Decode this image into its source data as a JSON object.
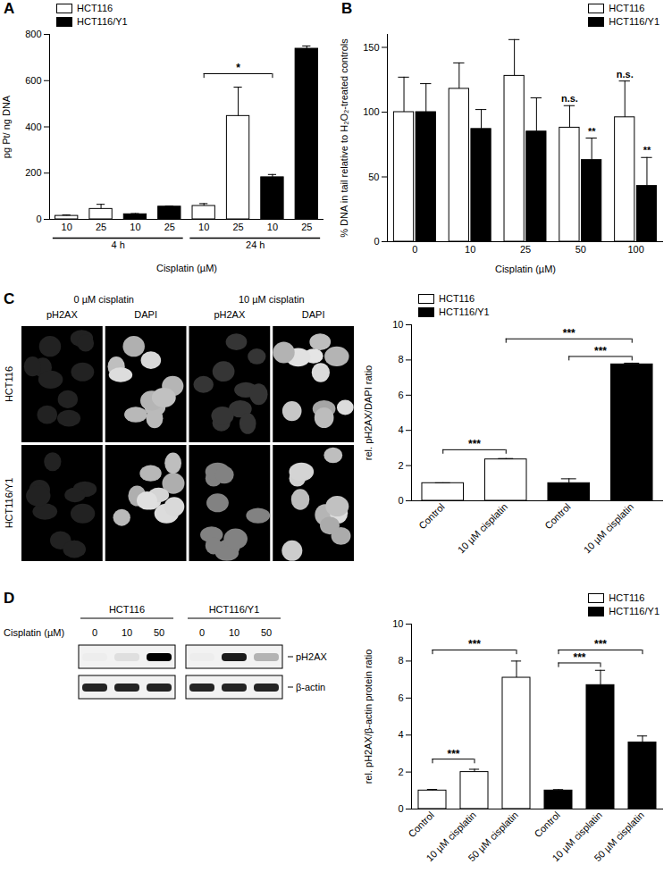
{
  "chart_data": [
    {
      "type": "bar",
      "title": "A",
      "xlabel": "Cisplatin (µM)",
      "ylabel": "pg Pt/ ng DNA",
      "categories": [
        "10",
        "25",
        "10",
        "25",
        "10",
        "25",
        "10",
        "25"
      ],
      "groups": [
        "4 h",
        "4 h",
        "4 h",
        "4 h",
        "24 h",
        "24 h",
        "24 h",
        "24 h"
      ],
      "bar_series": [
        "HCT116",
        "HCT116",
        "HCT116/Y1",
        "HCT116/Y1",
        "HCT116",
        "HCT116",
        "HCT116/Y1",
        "HCT116/Y1"
      ],
      "values": [
        15,
        45,
        22,
        55,
        58,
        447,
        182,
        738
      ],
      "errors": [
        4,
        20,
        3,
        3,
        10,
        125,
        12,
        12
      ],
      "series": [
        {
          "name": "HCT116",
          "color": "#ffffff"
        },
        {
          "name": "HCT116/Y1",
          "color": "#000000"
        }
      ],
      "ylim": [
        0,
        800
      ],
      "yticks": [
        0,
        200,
        400,
        600,
        800
      ],
      "legend": "top-left",
      "brackets": [
        {
          "text": "*",
          "from": 4,
          "to": 6,
          "y": 630
        }
      ]
    },
    {
      "type": "bar",
      "title": "B",
      "xlabel": "Cisplatin (µM)",
      "ylabel": "% DNA in tail relative to H₂O₂-treated controls",
      "categories": [
        "0",
        "10",
        "25",
        "50",
        "100"
      ],
      "series": [
        {
          "name": "HCT116",
          "color": "#ffffff",
          "values": [
            100,
            118,
            128,
            88,
            96
          ],
          "errors": [
            27,
            20,
            28,
            17,
            28
          ]
        },
        {
          "name": "HCT116/Y1",
          "color": "#000000",
          "values": [
            100,
            87,
            85,
            63,
            43
          ],
          "errors": [
            22,
            15,
            26,
            17,
            22
          ]
        }
      ],
      "ylim": [
        0,
        160
      ],
      "yticks": [
        0,
        50,
        100,
        150
      ],
      "legend": "top-right",
      "annotations": [
        {
          "text": "n.s.",
          "category": "50",
          "series": "HCT116"
        },
        {
          "text": "n.s.",
          "category": "100",
          "series": "HCT116"
        },
        {
          "text": "**",
          "category": "50",
          "series": "HCT116/Y1"
        },
        {
          "text": "**",
          "category": "100",
          "series": "HCT116/Y1"
        }
      ]
    },
    {
      "type": "bar",
      "title": "C",
      "ylabel": "rel. pH2AX/DAPI ratio",
      "categories": [
        "Control",
        "10 µM cisplatin",
        "Control",
        "10 µM cisplatin"
      ],
      "bar_series": [
        "HCT116",
        "HCT116",
        "HCT116/Y1",
        "HCT116/Y1"
      ],
      "values": [
        1,
        2.35,
        1,
        7.75
      ],
      "errors": [
        0.02,
        0.05,
        0.25,
        0.07
      ],
      "series": [
        {
          "name": "HCT116",
          "color": "#ffffff"
        },
        {
          "name": "HCT116/Y1",
          "color": "#000000"
        }
      ],
      "ylim": [
        0,
        10
      ],
      "yticks": [
        0,
        2,
        4,
        6,
        8,
        10
      ],
      "legend": "top-left",
      "brackets": [
        {
          "text": "***",
          "from": 0,
          "to": 1,
          "y": 2.9
        },
        {
          "text": "***",
          "from": 2,
          "to": 3,
          "y": 8.2
        },
        {
          "text": "***",
          "from": 1,
          "to": 3,
          "y": 9.2
        }
      ]
    },
    {
      "type": "bar",
      "title": "D",
      "ylabel": "rel. pH2AX/β-actin protein ratio",
      "categories": [
        "Control",
        "10 µM cisplatin",
        "50 µM cisplatin",
        "Control",
        "10 µM cisplatin",
        "50 µM cisplatin"
      ],
      "bar_series": [
        "HCT116",
        "HCT116",
        "HCT116",
        "HCT116/Y1",
        "HCT116/Y1",
        "HCT116/Y1"
      ],
      "values": [
        1,
        2,
        7.1,
        1,
        6.7,
        3.6
      ],
      "errors": [
        0.06,
        0.15,
        0.9,
        0.05,
        0.8,
        0.35
      ],
      "series": [
        {
          "name": "HCT116",
          "color": "#ffffff"
        },
        {
          "name": "HCT116/Y1",
          "color": "#000000"
        }
      ],
      "ylim": [
        0,
        10
      ],
      "yticks": [
        0,
        2,
        4,
        6,
        8,
        10
      ],
      "legend": "top-right",
      "brackets": [
        {
          "text": "***",
          "from": 0,
          "to": 1,
          "y": 2.7
        },
        {
          "text": "***",
          "from": 0,
          "to": 2,
          "y": 8.6
        },
        {
          "text": "***",
          "from": 3,
          "to": 4,
          "y": 7.9
        },
        {
          "text": "***",
          "from": 3,
          "to": 5,
          "y": 8.6
        }
      ]
    }
  ],
  "images": {
    "C": {
      "columns": [
        {
          "header": "0 µM cisplatin",
          "channels": [
            "pH2AX",
            "DAPI"
          ]
        },
        {
          "header": "10 µM cisplatin",
          "channels": [
            "pH2AX",
            "DAPI"
          ]
        }
      ],
      "rows": [
        "HCT116",
        "HCT116/Y1"
      ]
    },
    "D": {
      "groups": [
        "HCT116",
        "HCT116/Y1"
      ],
      "xlabel": "Cisplatin (µM)",
      "lanes": [
        "0",
        "10",
        "50"
      ],
      "rows": [
        "pH2AX",
        "β-actin"
      ]
    }
  }
}
